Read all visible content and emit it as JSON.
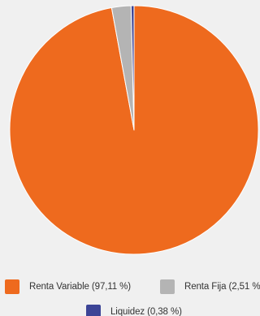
{
  "chart_data": {
    "type": "pie",
    "title": "",
    "start_angle_deg": 0,
    "direction": "clockwise",
    "slices": [
      {
        "label": "Renta Variable (97,11 %)",
        "value": 97.11,
        "color": "#ee6a1e"
      },
      {
        "label": "Renta Fija (2,51 %",
        "value": 2.51,
        "color": "#b4b4b4"
      },
      {
        "label": "Liquidez (0,38 %)",
        "value": 0.38,
        "color": "#3c4496"
      }
    ],
    "legend_position": "bottom"
  }
}
